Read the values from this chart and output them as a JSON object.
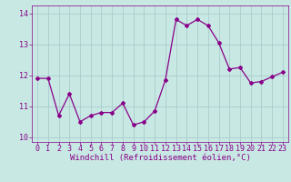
{
  "x": [
    0,
    1,
    2,
    3,
    4,
    5,
    6,
    7,
    8,
    9,
    10,
    11,
    12,
    13,
    14,
    15,
    16,
    17,
    18,
    19,
    20,
    21,
    22,
    23
  ],
  "y": [
    11.9,
    11.9,
    10.7,
    11.4,
    10.5,
    10.7,
    10.8,
    10.8,
    11.1,
    10.4,
    10.5,
    10.85,
    11.85,
    13.8,
    13.6,
    13.8,
    13.6,
    13.05,
    12.2,
    12.25,
    11.75,
    11.8,
    11.95,
    12.1
  ],
  "line_color": "#880088",
  "marker": "D",
  "marker_size": 2,
  "linewidth": 0.9,
  "bg_color": "#c8e8e4",
  "grid_color": "#aacccc",
  "xlabel": "Windchill (Refroidissement éolien,°C)",
  "ylim": [
    9.85,
    14.25
  ],
  "xlim": [
    -0.5,
    23.5
  ],
  "yticks": [
    10,
    11,
    12,
    13,
    14
  ],
  "xticks": [
    0,
    1,
    2,
    3,
    4,
    5,
    6,
    7,
    8,
    9,
    10,
    11,
    12,
    13,
    14,
    15,
    16,
    17,
    18,
    19,
    20,
    21,
    22,
    23
  ],
  "tick_color": "#880088",
  "label_color": "#880088",
  "font_family": "monospace",
  "xlabel_fontsize": 6.5,
  "tick_fontsize": 6
}
